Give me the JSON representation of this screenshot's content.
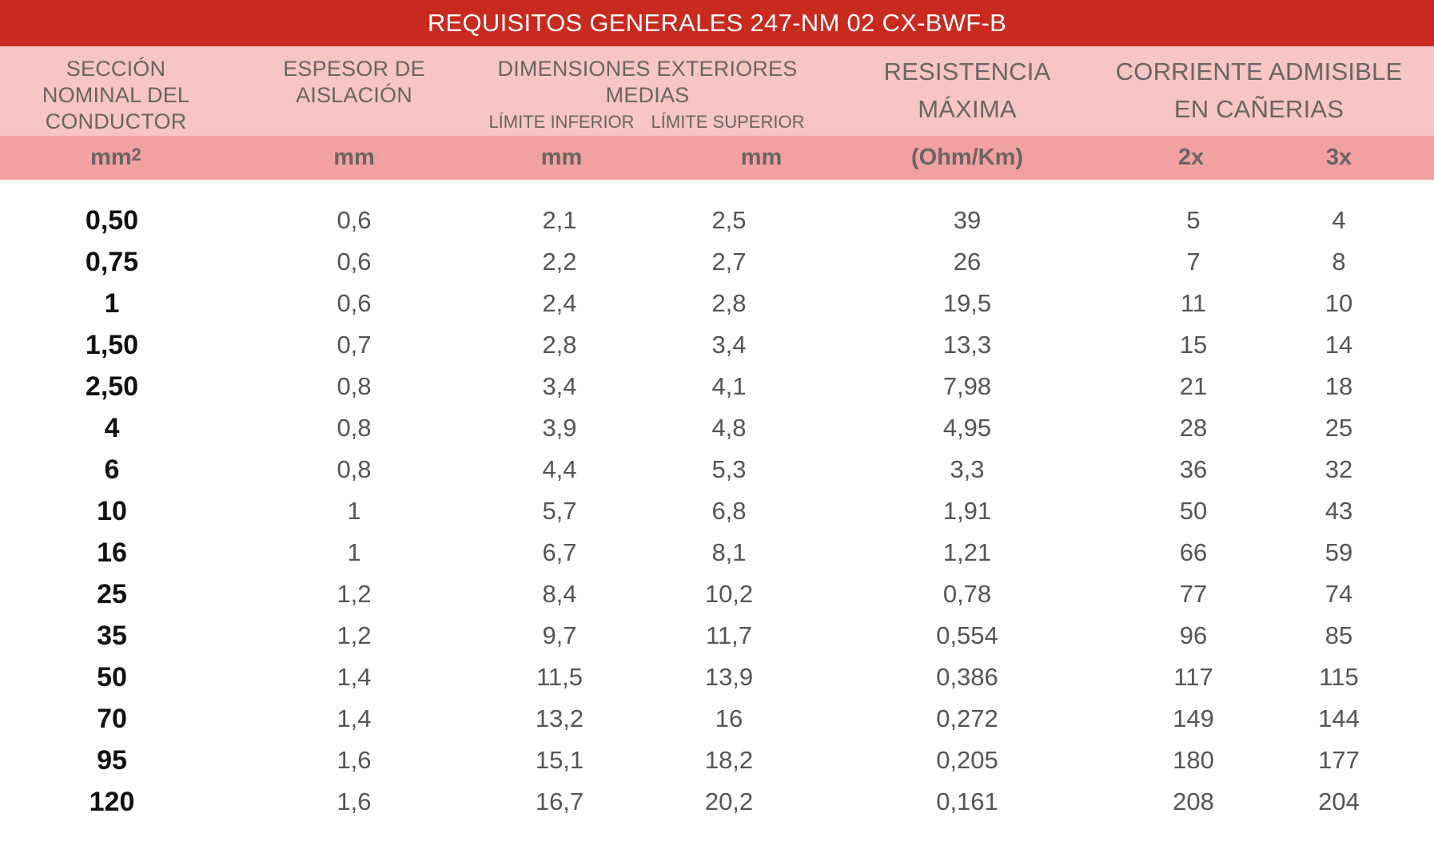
{
  "title": "REQUISITOS GENERALES 247-NM 02 CX-BWF-B",
  "headers": {
    "seccion": [
      "SECCIÓN",
      "NOMINAL DEL",
      "CONDUCTOR"
    ],
    "espesor": [
      "ESPESOR DE",
      "AISLACIÓN"
    ],
    "dimensiones": [
      "DIMENSIONES EXTERIORES",
      "MEDIAS"
    ],
    "limite_inferior": "LÍMITE INFERIOR",
    "limite_superior": "LÍMITE SUPERIOR",
    "resistencia": [
      "RESISTENCIA",
      "MÁXIMA"
    ],
    "corriente": [
      "CORRIENTE ADMISIBLE",
      "EN CAÑERIAS"
    ]
  },
  "units": {
    "seccion": "mm",
    "seccion_sup": "2",
    "espesor": "mm",
    "lim_inf": "mm",
    "lim_sup": "mm",
    "resistencia": "(Ohm/Km)",
    "c2x": "2x",
    "c3x": "3x"
  },
  "rows": [
    [
      "0,50",
      "0,6",
      "2,1",
      "2,5",
      "39",
      "5",
      "4"
    ],
    [
      "0,75",
      "0,6",
      "2,2",
      "2,7",
      "26",
      "7",
      "8"
    ],
    [
      "1",
      "0,6",
      "2,4",
      "2,8",
      "19,5",
      "11",
      "10"
    ],
    [
      "1,50",
      "0,7",
      "2,8",
      "3,4",
      "13,3",
      "15",
      "14"
    ],
    [
      "2,50",
      "0,8",
      "3,4",
      "4,1",
      "7,98",
      "21",
      "18"
    ],
    [
      "4",
      "0,8",
      "3,9",
      "4,8",
      "4,95",
      "28",
      "25"
    ],
    [
      "6",
      "0,8",
      "4,4",
      "5,3",
      "3,3",
      "36",
      "32"
    ],
    [
      "10",
      "1",
      "5,7",
      "6,8",
      "1,91",
      "50",
      "43"
    ],
    [
      "16",
      "1",
      "6,7",
      "8,1",
      "1,21",
      "66",
      "59"
    ],
    [
      "25",
      "1,2",
      "8,4",
      "10,2",
      "0,78",
      "77",
      "74"
    ],
    [
      "35",
      "1,2",
      "9,7",
      "11,7",
      "0,554",
      "96",
      "85"
    ],
    [
      "50",
      "1,4",
      "11,5",
      "13,9",
      "0,386",
      "117",
      "115"
    ],
    [
      "70",
      "1,4",
      "13,2",
      "16",
      "0,272",
      "149",
      "144"
    ],
    [
      "95",
      "1,6",
      "15,1",
      "18,2",
      "0,205",
      "180",
      "177"
    ],
    [
      "120",
      "1,6",
      "16,7",
      "20,2",
      "0,161",
      "208",
      "204"
    ]
  ]
}
